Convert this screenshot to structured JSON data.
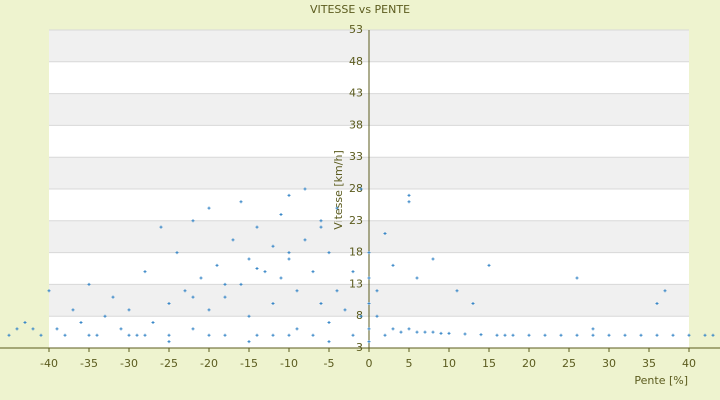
{
  "chart_data": {
    "type": "scatter",
    "title": "VITESSE vs PENTE",
    "x_label": "Pente [%]",
    "y_label": "Vitesse [km/h]",
    "color": "#3a88c8",
    "x": [
      -45,
      -44,
      -43,
      -42,
      -41,
      -40,
      -39,
      -38,
      -37,
      -36,
      -35,
      -34,
      -33,
      -32,
      -31,
      -30,
      -29,
      -28,
      -27,
      -26,
      -25,
      -25,
      -24,
      -23,
      -22,
      -22,
      -21,
      -20,
      -20,
      -19,
      -18,
      -18,
      -17,
      -16,
      -16,
      -15,
      -15,
      -14,
      -14,
      -13,
      -12,
      -12,
      -11,
      -11,
      -10,
      -10,
      -9,
      -9,
      -8,
      -8,
      -7,
      -7,
      -6,
      -6,
      -5,
      -5,
      -4,
      -4,
      -3,
      -2,
      -2,
      -1,
      -1,
      -30,
      -25,
      -20,
      -15,
      -10,
      -5,
      -35,
      -28,
      -12,
      -22,
      -18,
      -14,
      -10,
      -6,
      0,
      0,
      0,
      0,
      0,
      1,
      1,
      2,
      2,
      3,
      3,
      4,
      5,
      5,
      5,
      6,
      6,
      7,
      8,
      8,
      9,
      10,
      11,
      12,
      13,
      14,
      15,
      16,
      17,
      18,
      20,
      22,
      24,
      26,
      26,
      28,
      28,
      30,
      32,
      34,
      36,
      36,
      37,
      38,
      40,
      42,
      43
    ],
    "values": [
      5,
      6,
      7,
      6,
      5,
      12,
      6,
      5,
      9,
      7,
      13,
      5,
      8,
      11,
      6,
      9,
      5,
      15,
      7,
      22,
      10,
      5,
      18,
      12,
      23,
      6,
      14,
      25,
      9,
      16,
      11,
      5,
      20,
      26,
      13,
      8,
      17,
      22,
      5,
      15,
      19,
      10,
      24,
      14,
      27,
      17,
      12,
      6,
      28,
      20,
      15,
      5,
      23,
      10,
      18,
      7,
      25,
      12,
      9,
      15,
      5,
      28,
      8,
      5,
      4,
      5,
      4,
      5,
      4,
      5,
      5,
      5,
      11,
      13,
      15.5,
      18,
      22,
      4,
      6,
      10,
      14,
      18,
      8,
      12,
      21,
      5,
      16,
      6,
      5.5,
      27,
      26,
      6,
      14,
      5.5,
      5.5,
      17,
      5.5,
      5.3,
      5.3,
      12,
      5.2,
      10,
      5.1,
      16,
      5,
      5,
      5,
      5,
      5,
      5,
      14,
      5,
      6,
      5,
      5,
      5,
      5,
      10,
      5,
      12,
      5,
      5,
      5,
      5
    ],
    "xlim": [
      -46,
      43.8
    ],
    "ylim": [
      3,
      53
    ],
    "xticks": [
      -40,
      -35,
      -30,
      -25,
      -20,
      -15,
      -10,
      -5,
      0,
      5,
      10,
      15,
      20,
      25,
      30,
      35,
      40
    ],
    "yticks": [
      3,
      8,
      13,
      18,
      23,
      28,
      33,
      38,
      43,
      48,
      53
    ],
    "grid": true
  }
}
